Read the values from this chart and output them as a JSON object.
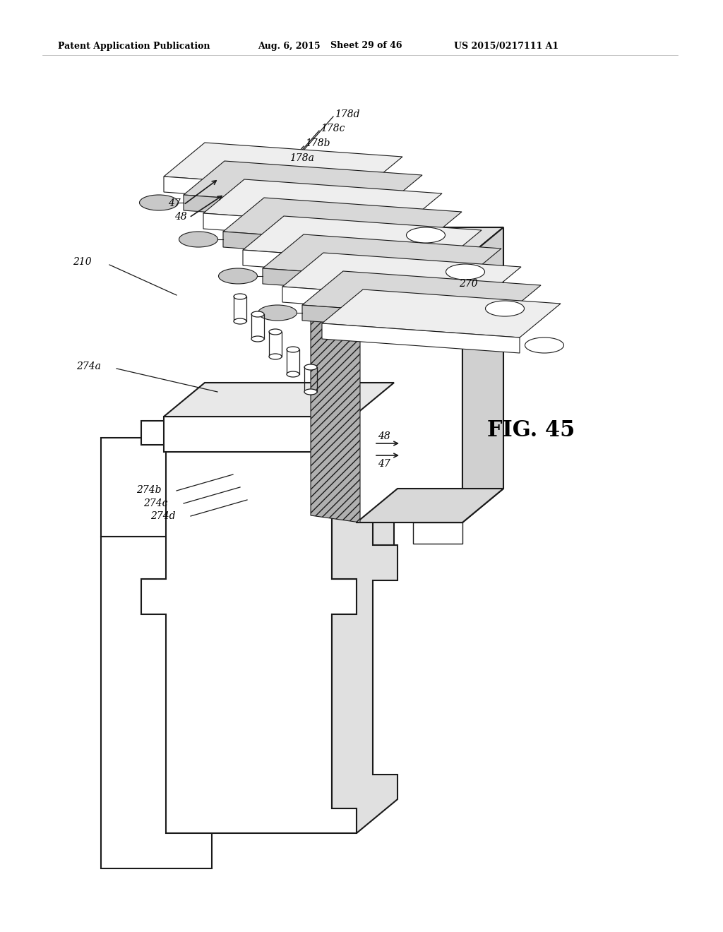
{
  "header_left": "Patent Application Publication",
  "header_mid": "Aug. 6, 2015",
  "header_sheet": "Sheet 29 of 46",
  "header_right": "US 2015/0217111 A1",
  "fig_label": "FIG. 45",
  "bg_color": "#ffffff",
  "lc": "#1a1a1a",
  "gray_light": "#c8c8c8",
  "gray_mid": "#a8a8a8",
  "gray_dark": "#707070",
  "hatch_dark": "#888888"
}
